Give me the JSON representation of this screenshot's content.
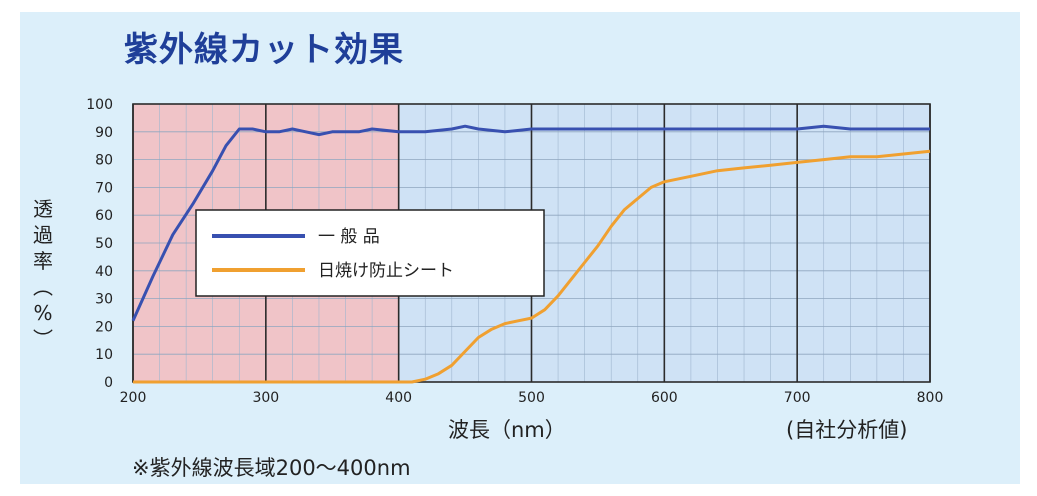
{
  "chart_data": {
    "type": "line",
    "title": "紫外線カット効果",
    "ylabel": "透過率（%）",
    "xlabel": "波長（nm）",
    "x_note": "(自社分析値)",
    "footnote": "※紫外線波長域200〜400nm",
    "xlim": [
      200,
      800
    ],
    "ylim": [
      0,
      100
    ],
    "xticks": [
      200,
      300,
      400,
      500,
      600,
      700,
      800
    ],
    "yticks": [
      0,
      10,
      20,
      30,
      40,
      50,
      60,
      70,
      80,
      90,
      100
    ],
    "uv_region": [
      200,
      400
    ],
    "grid": true,
    "legend_position": "center-left",
    "colors": {
      "uv_region": "#f0c4c8",
      "visible_region": "#cfe2f5",
      "background": "#dceffa",
      "grid": "#2b2b2b",
      "title": "#1f3f99"
    },
    "series": [
      {
        "name": "一 般 品",
        "color": "#3850b0",
        "points": [
          [
            200,
            22
          ],
          [
            215,
            38
          ],
          [
            230,
            53
          ],
          [
            245,
            64
          ],
          [
            260,
            76
          ],
          [
            270,
            85
          ],
          [
            280,
            91
          ],
          [
            290,
            91
          ],
          [
            300,
            90
          ],
          [
            310,
            90
          ],
          [
            320,
            91
          ],
          [
            330,
            90
          ],
          [
            340,
            89
          ],
          [
            350,
            90
          ],
          [
            360,
            90
          ],
          [
            370,
            90
          ],
          [
            380,
            91
          ],
          [
            400,
            90
          ],
          [
            420,
            90
          ],
          [
            440,
            91
          ],
          [
            450,
            92
          ],
          [
            460,
            91
          ],
          [
            480,
            90
          ],
          [
            500,
            91
          ],
          [
            520,
            91
          ],
          [
            550,
            91
          ],
          [
            600,
            91
          ],
          [
            650,
            91
          ],
          [
            700,
            91
          ],
          [
            720,
            92
          ],
          [
            740,
            91
          ],
          [
            760,
            91
          ],
          [
            780,
            91
          ],
          [
            800,
            91
          ]
        ]
      },
      {
        "name": "日焼け防止シート",
        "color": "#f0a030",
        "points": [
          [
            200,
            0
          ],
          [
            300,
            0
          ],
          [
            400,
            0
          ],
          [
            410,
            0
          ],
          [
            420,
            1
          ],
          [
            430,
            3
          ],
          [
            440,
            6
          ],
          [
            450,
            11
          ],
          [
            460,
            16
          ],
          [
            470,
            19
          ],
          [
            480,
            21
          ],
          [
            490,
            22
          ],
          [
            500,
            23
          ],
          [
            510,
            26
          ],
          [
            520,
            31
          ],
          [
            530,
            37
          ],
          [
            540,
            43
          ],
          [
            550,
            49
          ],
          [
            560,
            56
          ],
          [
            570,
            62
          ],
          [
            580,
            66
          ],
          [
            590,
            70
          ],
          [
            600,
            72
          ],
          [
            620,
            74
          ],
          [
            640,
            76
          ],
          [
            660,
            77
          ],
          [
            680,
            78
          ],
          [
            700,
            79
          ],
          [
            720,
            80
          ],
          [
            740,
            81
          ],
          [
            760,
            81
          ],
          [
            780,
            82
          ],
          [
            800,
            83
          ]
        ]
      }
    ]
  }
}
